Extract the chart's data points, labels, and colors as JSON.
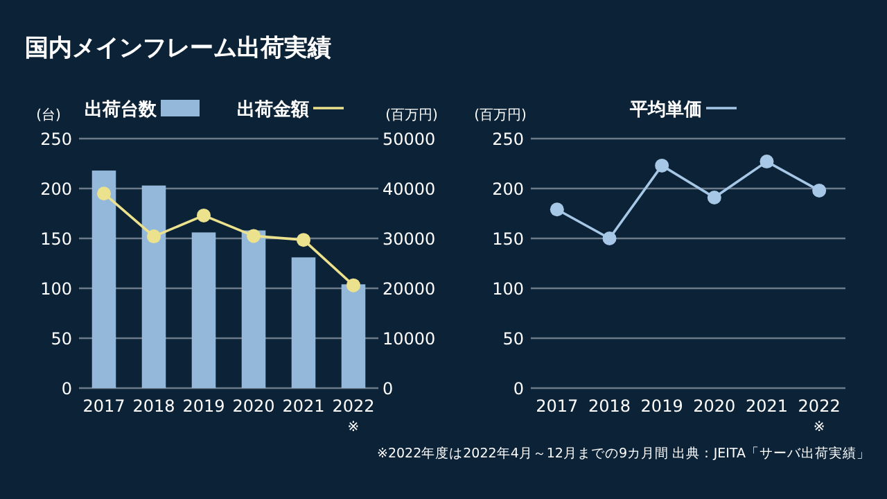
{
  "chart_data": [
    {
      "type": "bar",
      "title": "国内メインフレーム出荷実績",
      "categories": [
        "2017",
        "2018",
        "2019",
        "2020",
        "2021",
        "2022$_{※}$"
      ],
      "series": [
        {
          "name": "出荷台数",
          "color": "#93b8da",
          "values": [
            218,
            203,
            156,
            158,
            131,
            104
          ]
        },
        {
          "name": "出荷金額",
          "type": "line",
          "axis": "y2",
          "color": "#ece28e",
          "values": [
            39000,
            30400,
            34600,
            30500,
            29700,
            20600
          ]
        }
      ],
      "ylabel": "(台)",
      "y2label": "(百万円)",
      "ylim": [
        0,
        250
      ],
      "yticks": [
        0,
        50,
        100,
        150,
        200,
        250
      ],
      "y2lim": [
        0,
        50000
      ],
      "y2ticks": [
        0,
        10000,
        20000,
        30000,
        40000,
        50000
      ],
      "grid": "y",
      "legend": "top",
      "marker": "circle"
    },
    {
      "type": "line",
      "categories": [
        "2017",
        "2018",
        "2019",
        "2020",
        "2021",
        "2022$_{※}$"
      ],
      "series": [
        {
          "name": "平均単価",
          "color": "#a6c7e6",
          "values": [
            179,
            150,
            223,
            191,
            227,
            198
          ]
        }
      ],
      "ylabel": "(百万円)",
      "ylim": [
        0,
        250
      ],
      "yticks": [
        0,
        50,
        100,
        150,
        200,
        250
      ],
      "grid": "y",
      "legend": "top",
      "marker": "circle",
      "annotations": [
        "※2022年度は2022年4月～12月までの9カ月間",
        "出典：JEITA「サーバ出荷実績」"
      ]
    }
  ]
}
